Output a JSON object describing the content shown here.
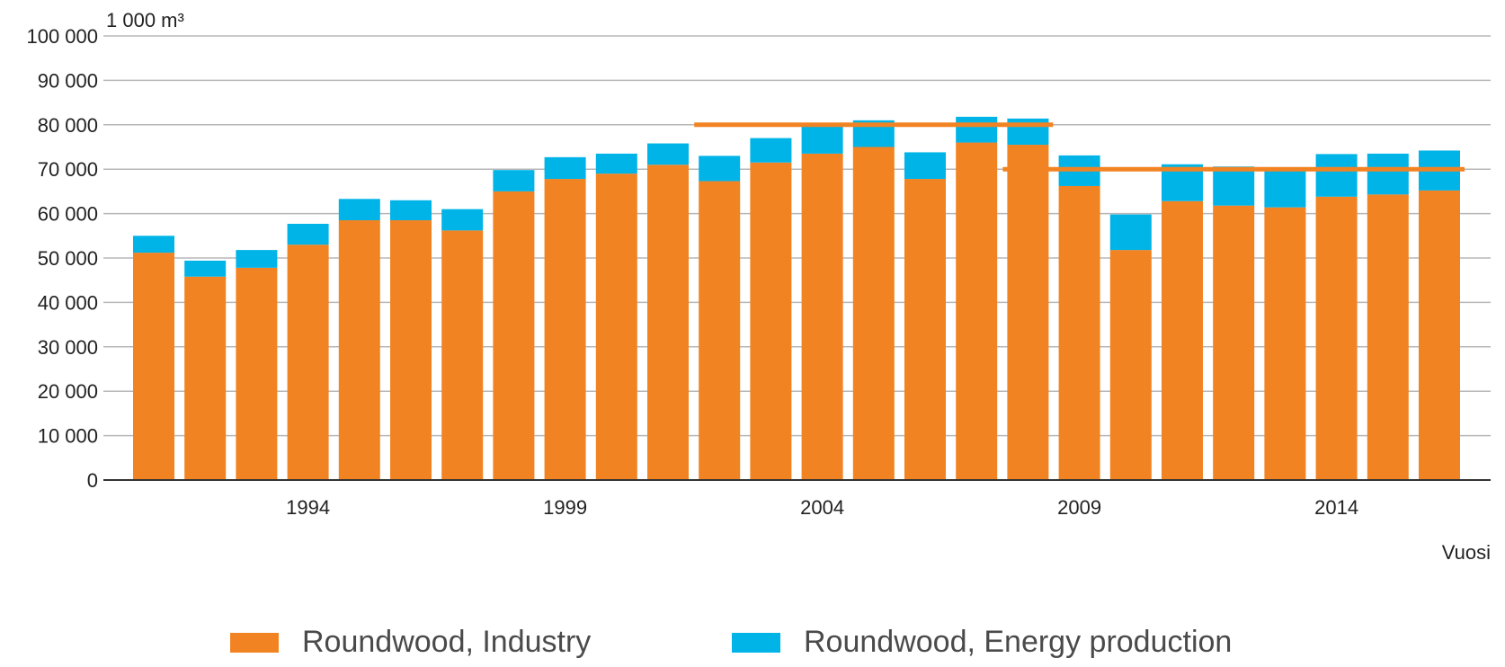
{
  "chart_data": {
    "type": "bar",
    "stacked": true,
    "unit_label": "1 000 m³",
    "xlabel": "Vuosi",
    "x": [
      1991,
      1992,
      1993,
      1994,
      1995,
      1996,
      1997,
      1998,
      1999,
      2000,
      2001,
      2002,
      2003,
      2004,
      2005,
      2006,
      2007,
      2008,
      2009,
      2010,
      2011,
      2012,
      2013,
      2014,
      2015,
      2016
    ],
    "x_tick_labels": [
      "1994",
      "1999",
      "2004",
      "2009",
      "2014"
    ],
    "x_tick_values": [
      1994,
      1999,
      2004,
      2009,
      2014
    ],
    "y_ticks": [
      0,
      10000,
      20000,
      30000,
      40000,
      50000,
      60000,
      70000,
      80000,
      90000,
      100000
    ],
    "y_tick_labels": [
      "0",
      "10 000",
      "20 000",
      "30 000",
      "40 000",
      "50 000",
      "60 000",
      "70 000",
      "80 000",
      "90 000",
      "100 000"
    ],
    "ylim": [
      0,
      100000
    ],
    "grid": true,
    "legend_position": "bottom",
    "series": [
      {
        "name": "Roundwood, Industry",
        "color": "#f28322",
        "values": [
          51200,
          45800,
          47800,
          53000,
          58500,
          58500,
          56200,
          65000,
          67800,
          69000,
          71000,
          67300,
          71500,
          73500,
          75000,
          67800,
          76000,
          75500,
          66200,
          51800,
          62800,
          61800,
          61400,
          63800,
          64300,
          65200
        ]
      },
      {
        "name": "Roundwood, Energy production",
        "color": "#00b4e8",
        "values": [
          3800,
          3600,
          4000,
          4700,
          4800,
          4500,
          4800,
          4800,
          4900,
          4500,
          4800,
          5700,
          5500,
          6500,
          6000,
          6000,
          5800,
          5900,
          6900,
          8000,
          8300,
          8800,
          8700,
          9600,
          9200,
          9000
        ]
      }
    ],
    "reference_lines": [
      {
        "value": 80000,
        "x_start": 2002,
        "x_end": 2008,
        "color": "#f28322"
      },
      {
        "value": 70000,
        "x_start": 2008,
        "x_end": 2016,
        "color": "#f28322"
      }
    ]
  }
}
